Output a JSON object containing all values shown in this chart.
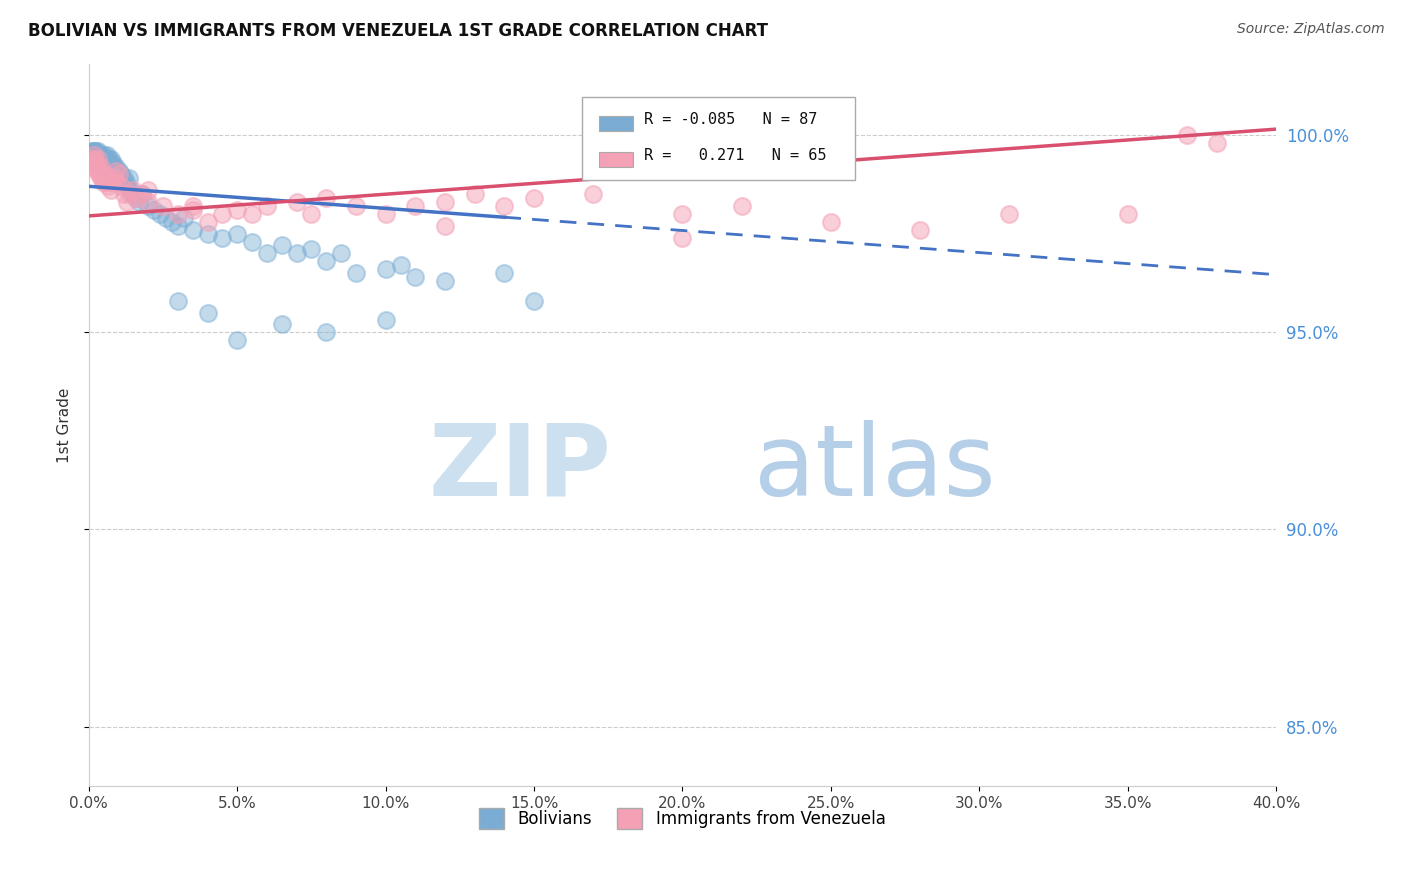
{
  "title": "BOLIVIAN VS IMMIGRANTS FROM VENEZUELA 1ST GRADE CORRELATION CHART",
  "source_text": "Source: ZipAtlas.com",
  "ylabel": "1st Grade",
  "xlim": [
    0.0,
    40.0
  ],
  "ylim": [
    83.5,
    101.8
  ],
  "yticks": [
    85.0,
    90.0,
    95.0,
    100.0
  ],
  "xticks": [
    0.0,
    5.0,
    10.0,
    15.0,
    20.0,
    25.0,
    30.0,
    35.0,
    40.0
  ],
  "legend_r_blue": "-0.085",
  "legend_n_blue": "87",
  "legend_r_pink": "0.271",
  "legend_n_pink": "65",
  "blue_color": "#7badd4",
  "pink_color": "#f4a0b5",
  "trend_blue_color": "#4472c4",
  "trend_pink_color": "#d94f6e",
  "watermark_zip_color": "#cde0f0",
  "watermark_atlas_color": "#b5cfe8",
  "blue_scatter": [
    [
      0.05,
      99.5
    ],
    [
      0.08,
      99.6
    ],
    [
      0.1,
      99.4
    ],
    [
      0.12,
      99.5
    ],
    [
      0.14,
      99.6
    ],
    [
      0.15,
      99.5
    ],
    [
      0.16,
      99.6
    ],
    [
      0.18,
      99.5
    ],
    [
      0.2,
      99.4
    ],
    [
      0.22,
      99.6
    ],
    [
      0.24,
      99.5
    ],
    [
      0.25,
      99.6
    ],
    [
      0.26,
      99.5
    ],
    [
      0.28,
      99.4
    ],
    [
      0.3,
      99.5
    ],
    [
      0.32,
      99.6
    ],
    [
      0.34,
      99.5
    ],
    [
      0.35,
      99.4
    ],
    [
      0.36,
      99.3
    ],
    [
      0.38,
      99.5
    ],
    [
      0.4,
      99.4
    ],
    [
      0.42,
      99.3
    ],
    [
      0.44,
      99.5
    ],
    [
      0.46,
      99.4
    ],
    [
      0.48,
      99.3
    ],
    [
      0.5,
      99.5
    ],
    [
      0.52,
      99.4
    ],
    [
      0.55,
      99.3
    ],
    [
      0.58,
      99.2
    ],
    [
      0.6,
      99.4
    ],
    [
      0.62,
      99.5
    ],
    [
      0.65,
      99.3
    ],
    [
      0.68,
      99.4
    ],
    [
      0.7,
      99.2
    ],
    [
      0.72,
      99.3
    ],
    [
      0.75,
      99.4
    ],
    [
      0.78,
      99.2
    ],
    [
      0.8,
      99.3
    ],
    [
      0.82,
      99.1
    ],
    [
      0.85,
      99.2
    ],
    [
      0.88,
      99.0
    ],
    [
      0.9,
      99.1
    ],
    [
      0.92,
      99.2
    ],
    [
      0.95,
      99.0
    ],
    [
      1.0,
      99.1
    ],
    [
      1.05,
      98.9
    ],
    [
      1.1,
      99.0
    ],
    [
      1.15,
      98.8
    ],
    [
      1.2,
      98.9
    ],
    [
      1.25,
      98.8
    ],
    [
      1.3,
      98.7
    ],
    [
      1.35,
      98.9
    ],
    [
      1.4,
      98.6
    ],
    [
      1.5,
      98.5
    ],
    [
      1.6,
      98.4
    ],
    [
      1.7,
      98.3
    ],
    [
      1.8,
      98.5
    ],
    [
      2.0,
      98.2
    ],
    [
      2.2,
      98.1
    ],
    [
      2.4,
      98.0
    ],
    [
      2.6,
      97.9
    ],
    [
      2.8,
      97.8
    ],
    [
      3.0,
      97.7
    ],
    [
      3.2,
      97.9
    ],
    [
      3.5,
      97.6
    ],
    [
      4.0,
      97.5
    ],
    [
      4.5,
      97.4
    ],
    [
      5.0,
      97.5
    ],
    [
      5.5,
      97.3
    ],
    [
      6.0,
      97.0
    ],
    [
      6.5,
      97.2
    ],
    [
      7.0,
      97.0
    ],
    [
      7.5,
      97.1
    ],
    [
      8.0,
      96.8
    ],
    [
      8.5,
      97.0
    ],
    [
      9.0,
      96.5
    ],
    [
      10.0,
      96.6
    ],
    [
      10.5,
      96.7
    ],
    [
      11.0,
      96.4
    ],
    [
      12.0,
      96.3
    ],
    [
      14.0,
      96.5
    ],
    [
      3.0,
      95.8
    ],
    [
      4.0,
      95.5
    ],
    [
      5.0,
      94.8
    ],
    [
      6.5,
      95.2
    ],
    [
      8.0,
      95.0
    ],
    [
      10.0,
      95.3
    ],
    [
      15.0,
      95.8
    ]
  ],
  "pink_scatter": [
    [
      0.1,
      99.4
    ],
    [
      0.15,
      99.3
    ],
    [
      0.18,
      99.5
    ],
    [
      0.2,
      99.4
    ],
    [
      0.22,
      99.2
    ],
    [
      0.25,
      99.3
    ],
    [
      0.28,
      99.1
    ],
    [
      0.3,
      99.4
    ],
    [
      0.32,
      99.2
    ],
    [
      0.35,
      99.0
    ],
    [
      0.38,
      99.1
    ],
    [
      0.4,
      98.9
    ],
    [
      0.42,
      99.2
    ],
    [
      0.45,
      99.0
    ],
    [
      0.48,
      98.8
    ],
    [
      0.5,
      99.0
    ],
    [
      0.55,
      98.8
    ],
    [
      0.6,
      98.9
    ],
    [
      0.65,
      98.7
    ],
    [
      0.7,
      98.8
    ],
    [
      0.75,
      98.6
    ],
    [
      0.8,
      98.8
    ],
    [
      0.85,
      98.9
    ],
    [
      0.9,
      99.1
    ],
    [
      0.95,
      98.8
    ],
    [
      1.0,
      99.0
    ],
    [
      1.1,
      98.7
    ],
    [
      1.2,
      98.5
    ],
    [
      1.3,
      98.3
    ],
    [
      1.4,
      98.5
    ],
    [
      1.5,
      98.6
    ],
    [
      1.6,
      98.4
    ],
    [
      1.8,
      98.5
    ],
    [
      2.0,
      98.3
    ],
    [
      2.5,
      98.2
    ],
    [
      3.0,
      98.0
    ],
    [
      3.5,
      98.2
    ],
    [
      4.0,
      97.8
    ],
    [
      4.5,
      98.0
    ],
    [
      5.0,
      98.1
    ],
    [
      5.5,
      98.0
    ],
    [
      6.0,
      98.2
    ],
    [
      7.0,
      98.3
    ],
    [
      7.5,
      98.0
    ],
    [
      8.0,
      98.4
    ],
    [
      9.0,
      98.2
    ],
    [
      10.0,
      98.0
    ],
    [
      11.0,
      98.2
    ],
    [
      12.0,
      98.3
    ],
    [
      13.0,
      98.5
    ],
    [
      14.0,
      98.2
    ],
    [
      15.0,
      98.4
    ],
    [
      17.0,
      98.5
    ],
    [
      20.0,
      98.0
    ],
    [
      22.0,
      98.2
    ],
    [
      25.0,
      97.8
    ],
    [
      28.0,
      97.6
    ],
    [
      31.0,
      98.0
    ],
    [
      35.0,
      98.0
    ],
    [
      37.0,
      100.0
    ],
    [
      38.0,
      99.8
    ],
    [
      20.0,
      97.4
    ],
    [
      12.0,
      97.7
    ],
    [
      2.0,
      98.6
    ],
    [
      3.5,
      98.1
    ]
  ],
  "trend_blue_solid_end": 14.0,
  "trend_pink_intercept": 97.95,
  "trend_pink_slope": 0.055,
  "trend_blue_intercept": 98.7,
  "trend_blue_slope": -0.056
}
